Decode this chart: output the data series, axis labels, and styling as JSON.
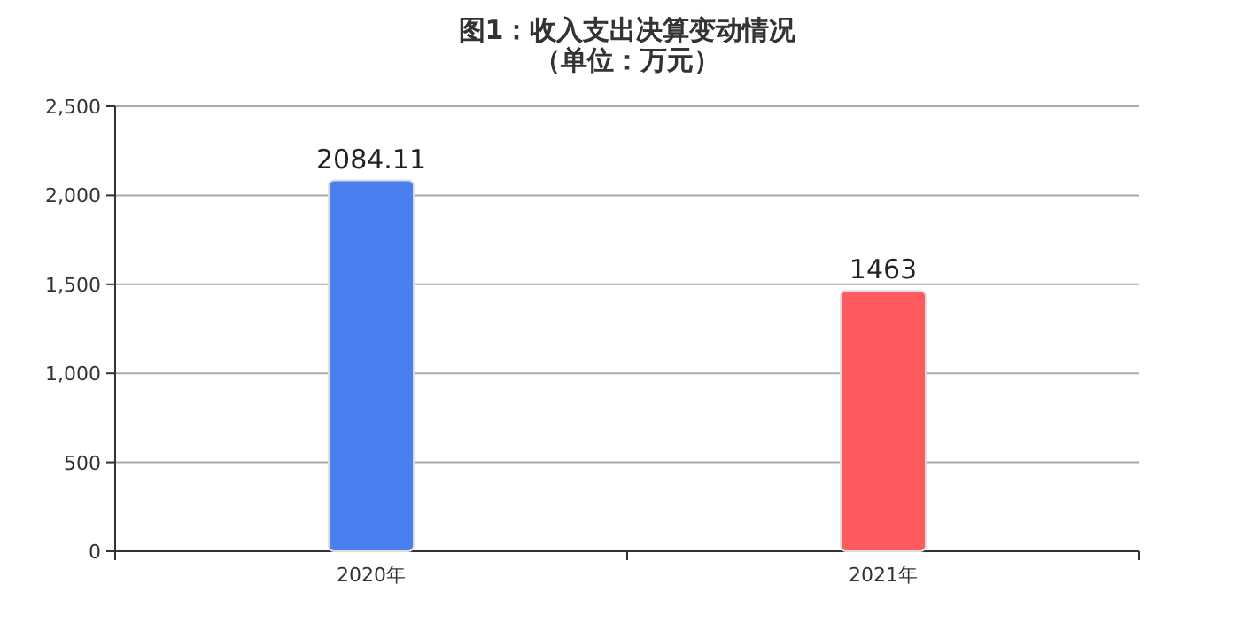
{
  "chart_data": {
    "type": "bar",
    "title": "图1：收入支出决算变动情况",
    "subtitle": "（单位：万元）",
    "categories": [
      "2020年",
      "2021年"
    ],
    "values": [
      2084.11,
      1463
    ],
    "colors": [
      "#4a7ff0",
      "#ff5a5f"
    ],
    "ylim": [
      0,
      2500
    ],
    "yticks": [
      0,
      500,
      {
        "value": 1000,
        "label": "1,000"
      },
      {
        "value": 1500,
        "label": "1,500"
      },
      {
        "value": 2000,
        "label": "2,000"
      },
      {
        "value": 2500,
        "label": "2,500"
      }
    ],
    "grid": "y",
    "data_labels": true
  }
}
